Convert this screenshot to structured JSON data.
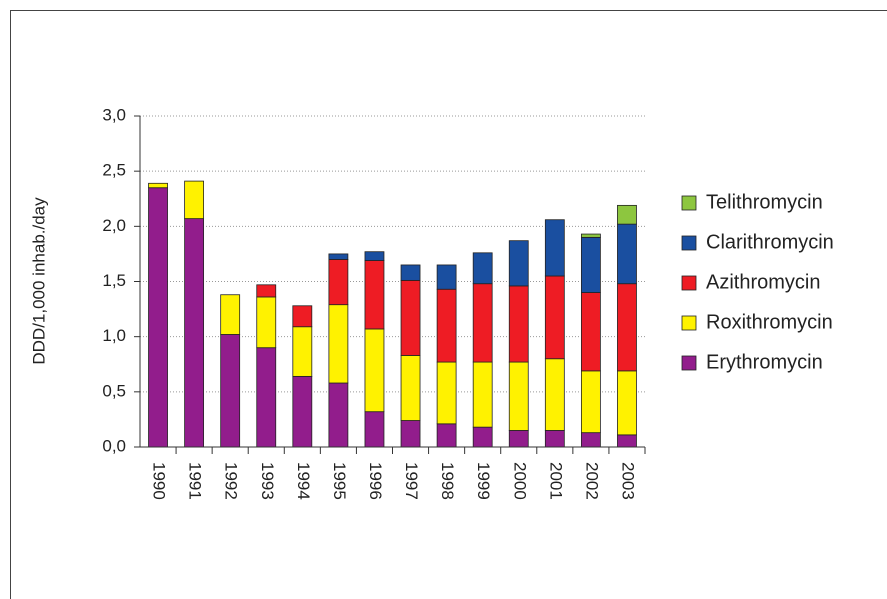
{
  "chart_data": {
    "type": "stacked-bar",
    "y_label": "DDD/1,000 inhab./day",
    "categories": [
      "1990",
      "1991",
      "1992",
      "1993",
      "1994",
      "1995",
      "1996",
      "1997",
      "1998",
      "1999",
      "2000",
      "2001",
      "2002",
      "2003"
    ],
    "series": [
      {
        "name": "Erythromycin",
        "color": "#921d8c",
        "values": [
          2.35,
          2.07,
          1.02,
          0.9,
          0.64,
          0.58,
          0.32,
          0.24,
          0.21,
          0.18,
          0.15,
          0.15,
          0.13,
          0.11
        ]
      },
      {
        "name": "Roxithromycin",
        "color": "#fff200",
        "values": [
          0.04,
          0.34,
          0.36,
          0.46,
          0.45,
          0.71,
          0.75,
          0.59,
          0.56,
          0.59,
          0.62,
          0.65,
          0.56,
          0.58
        ]
      },
      {
        "name": "Azithromycin",
        "color": "#ee1c24",
        "values": [
          null,
          null,
          null,
          0.11,
          0.19,
          0.41,
          0.62,
          0.68,
          0.66,
          0.71,
          0.69,
          0.75,
          0.71,
          0.79
        ]
      },
      {
        "name": "Clarithromycin",
        "color": "#1a4fa0",
        "values": [
          null,
          null,
          null,
          null,
          null,
          0.05,
          0.08,
          0.14,
          0.22,
          0.28,
          0.41,
          0.51,
          0.5,
          0.54
        ]
      },
      {
        "name": "Telithromycin",
        "color": "#8dc63f",
        "values": [
          null,
          null,
          null,
          null,
          null,
          null,
          null,
          null,
          null,
          null,
          null,
          null,
          0.03,
          0.17
        ]
      }
    ],
    "ylim": [
      0,
      3
    ],
    "yticks": [
      {
        "value": 0,
        "label": "0,0"
      },
      {
        "value": 0.5,
        "label": "0,5"
      },
      {
        "value": 1,
        "label": "1,0"
      },
      {
        "value": 1.5,
        "label": "1,5"
      },
      {
        "value": 2,
        "label": "2,0"
      },
      {
        "value": 2.5,
        "label": "2,5"
      },
      {
        "value": 3,
        "label": "3,0"
      }
    ],
    "grid": true,
    "legend": "right"
  }
}
